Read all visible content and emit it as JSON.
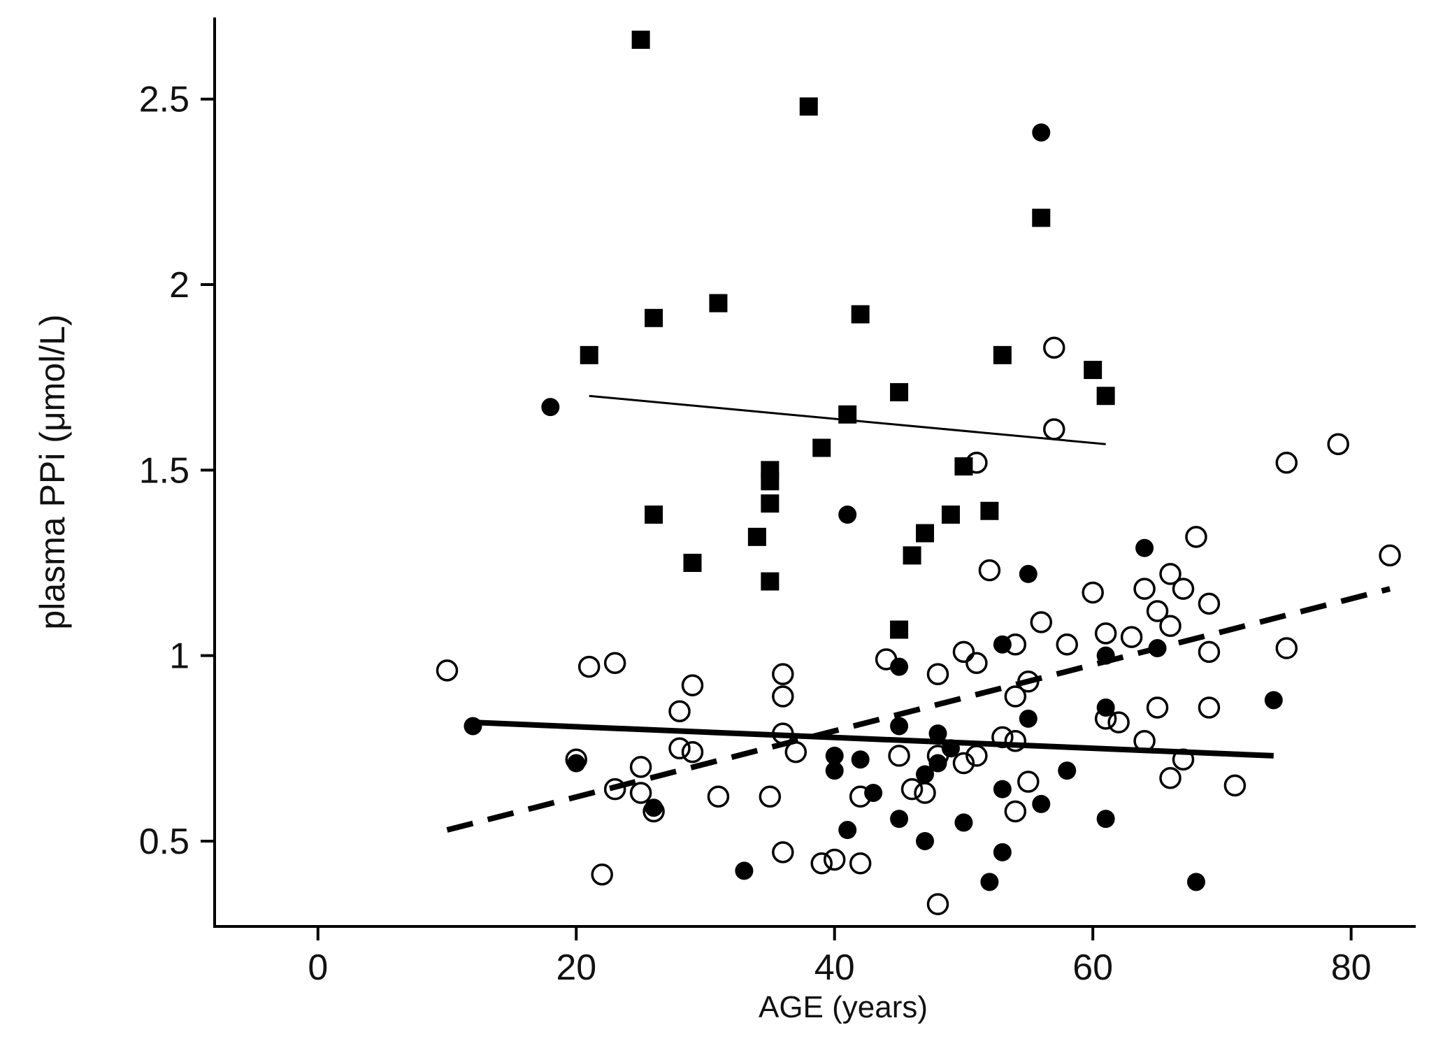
{
  "chart_data": {
    "type": "scatter",
    "title": "",
    "xlabel": "AGE (years)",
    "ylabel": "plasma PPi (μmol/L)",
    "xlim": [
      -8,
      85
    ],
    "ylim": [
      0.27,
      2.72
    ],
    "xticks": [
      0,
      20,
      40,
      60,
      80
    ],
    "xtick_labels": [
      "0",
      "20",
      "40",
      "60",
      "80"
    ],
    "yticks": [
      0.5,
      1,
      1.5,
      2,
      2.5
    ],
    "ytick_labels": [
      "0.5",
      "1",
      "1.5",
      "2",
      "2.5"
    ],
    "grid": false,
    "legend": "none",
    "colors": {
      "ink": "#000000",
      "background": "#ffffff"
    },
    "series": [
      {
        "name": "squares",
        "marker": "filled-square",
        "points": [
          [
            25,
            2.66
          ],
          [
            38,
            2.48
          ],
          [
            56,
            2.18
          ],
          [
            31,
            1.95
          ],
          [
            26,
            1.91
          ],
          [
            42,
            1.92
          ],
          [
            21,
            1.81
          ],
          [
            53,
            1.81
          ],
          [
            60,
            1.77
          ],
          [
            61,
            1.7
          ],
          [
            45,
            1.71
          ],
          [
            41,
            1.65
          ],
          [
            39,
            1.56
          ],
          [
            50,
            1.51
          ],
          [
            35,
            1.5
          ],
          [
            35,
            1.47
          ],
          [
            35,
            1.41
          ],
          [
            52,
            1.39
          ],
          [
            26,
            1.38
          ],
          [
            49,
            1.38
          ],
          [
            34,
            1.32
          ],
          [
            47,
            1.33
          ],
          [
            46,
            1.27
          ],
          [
            29,
            1.25
          ],
          [
            35,
            1.2
          ],
          [
            45,
            1.07
          ]
        ]
      },
      {
        "name": "filled circles",
        "marker": "filled-circle",
        "points": [
          [
            56,
            2.41
          ],
          [
            18,
            1.67
          ],
          [
            41,
            1.38
          ],
          [
            64,
            1.29
          ],
          [
            55,
            1.22
          ],
          [
            53,
            1.03
          ],
          [
            65,
            1.02
          ],
          [
            61,
            1.0
          ],
          [
            45,
            0.97
          ],
          [
            74,
            0.88
          ],
          [
            61,
            0.86
          ],
          [
            55,
            0.83
          ],
          [
            12,
            0.81
          ],
          [
            45,
            0.81
          ],
          [
            48,
            0.79
          ],
          [
            49,
            0.75
          ],
          [
            40,
            0.73
          ],
          [
            42,
            0.72
          ],
          [
            20,
            0.71
          ],
          [
            48,
            0.71
          ],
          [
            40,
            0.69
          ],
          [
            47,
            0.68
          ],
          [
            58,
            0.69
          ],
          [
            43,
            0.63
          ],
          [
            53,
            0.64
          ],
          [
            56,
            0.6
          ],
          [
            26,
            0.59
          ],
          [
            45,
            0.56
          ],
          [
            61,
            0.56
          ],
          [
            50,
            0.55
          ],
          [
            41,
            0.53
          ],
          [
            47,
            0.5
          ],
          [
            53,
            0.47
          ],
          [
            33,
            0.42
          ],
          [
            52,
            0.39
          ],
          [
            68,
            0.39
          ]
        ]
      },
      {
        "name": "open circles",
        "marker": "open-circle",
        "points": [
          [
            57,
            1.83
          ],
          [
            57,
            1.61
          ],
          [
            79,
            1.57
          ],
          [
            51,
            1.52
          ],
          [
            75,
            1.52
          ],
          [
            68,
            1.32
          ],
          [
            83,
            1.27
          ],
          [
            52,
            1.23
          ],
          [
            66,
            1.22
          ],
          [
            64,
            1.18
          ],
          [
            67,
            1.18
          ],
          [
            60,
            1.17
          ],
          [
            69,
            1.14
          ],
          [
            65,
            1.12
          ],
          [
            56,
            1.09
          ],
          [
            66,
            1.08
          ],
          [
            61,
            1.06
          ],
          [
            63,
            1.05
          ],
          [
            58,
            1.03
          ],
          [
            54,
            1.03
          ],
          [
            50,
            1.01
          ],
          [
            69,
            1.01
          ],
          [
            75,
            1.02
          ],
          [
            44,
            0.99
          ],
          [
            51,
            0.98
          ],
          [
            21,
            0.97
          ],
          [
            23,
            0.98
          ],
          [
            10,
            0.96
          ],
          [
            36,
            0.95
          ],
          [
            48,
            0.95
          ],
          [
            55,
            0.93
          ],
          [
            29,
            0.92
          ],
          [
            36,
            0.89
          ],
          [
            54,
            0.89
          ],
          [
            65,
            0.86
          ],
          [
            69,
            0.86
          ],
          [
            28,
            0.85
          ],
          [
            61,
            0.83
          ],
          [
            62,
            0.82
          ],
          [
            36,
            0.79
          ],
          [
            53,
            0.78
          ],
          [
            54,
            0.77
          ],
          [
            64,
            0.77
          ],
          [
            28,
            0.75
          ],
          [
            29,
            0.74
          ],
          [
            37,
            0.74
          ],
          [
            45,
            0.73
          ],
          [
            50,
            0.71
          ],
          [
            51,
            0.73
          ],
          [
            67,
            0.72
          ],
          [
            20,
            0.72
          ],
          [
            25,
            0.7
          ],
          [
            48,
            0.73
          ],
          [
            55,
            0.66
          ],
          [
            66,
            0.67
          ],
          [
            23,
            0.64
          ],
          [
            25,
            0.63
          ],
          [
            46,
            0.64
          ],
          [
            47,
            0.63
          ],
          [
            35,
            0.62
          ],
          [
            31,
            0.62
          ],
          [
            42,
            0.62
          ],
          [
            71,
            0.65
          ],
          [
            26,
            0.58
          ],
          [
            54,
            0.58
          ],
          [
            36,
            0.47
          ],
          [
            40,
            0.45
          ],
          [
            39,
            0.44
          ],
          [
            42,
            0.44
          ],
          [
            22,
            0.41
          ],
          [
            48,
            0.33
          ]
        ]
      }
    ],
    "fit_lines": [
      {
        "name": "squares trend",
        "style": "thin-solid",
        "x": [
          21,
          61
        ],
        "y": [
          1.7,
          1.57
        ]
      },
      {
        "name": "filled circles trend",
        "style": "thick-solid",
        "x": [
          12,
          74
        ],
        "y": [
          0.82,
          0.73
        ]
      },
      {
        "name": "open circles trend",
        "style": "thick-dashed",
        "x": [
          10,
          83
        ],
        "y": [
          0.53,
          1.18
        ]
      }
    ]
  }
}
